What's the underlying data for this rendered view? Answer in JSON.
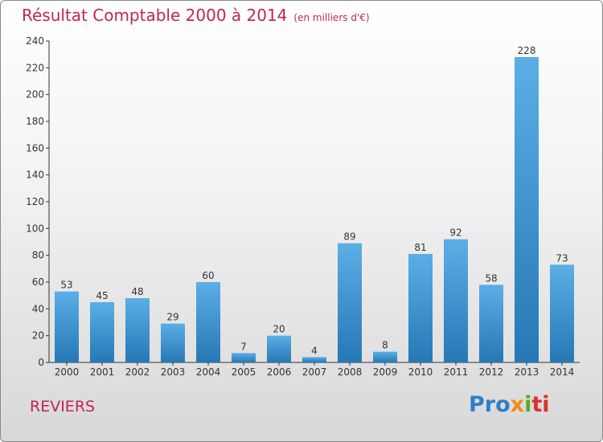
{
  "title": "Résultat Comptable 2000 à 2014",
  "subtitle": "(en milliers d'€)",
  "commune": "REVIERS",
  "logo": {
    "p1": "Pro",
    "p2": "x",
    "p3": "i",
    "p4": "ti"
  },
  "colors": {
    "title": "#c0245c",
    "bar_top": "#5caee6",
    "bar_bottom": "#2578b5"
  },
  "chart_data": {
    "type": "bar",
    "title": "Résultat Comptable 2000 à 2014",
    "ylabel": "en milliers d'€",
    "xlabel": "",
    "categories": [
      "2000",
      "2001",
      "2002",
      "2003",
      "2004",
      "2005",
      "2006",
      "2007",
      "2008",
      "2009",
      "2010",
      "2011",
      "2012",
      "2013",
      "2014"
    ],
    "values": [
      53,
      45,
      48,
      29,
      60,
      7,
      20,
      4,
      89,
      8,
      81,
      92,
      58,
      228,
      73
    ],
    "ylim": [
      0,
      240
    ],
    "yticks": [
      0,
      20,
      40,
      60,
      80,
      100,
      120,
      140,
      160,
      180,
      200,
      220,
      240
    ],
    "grid": false
  }
}
